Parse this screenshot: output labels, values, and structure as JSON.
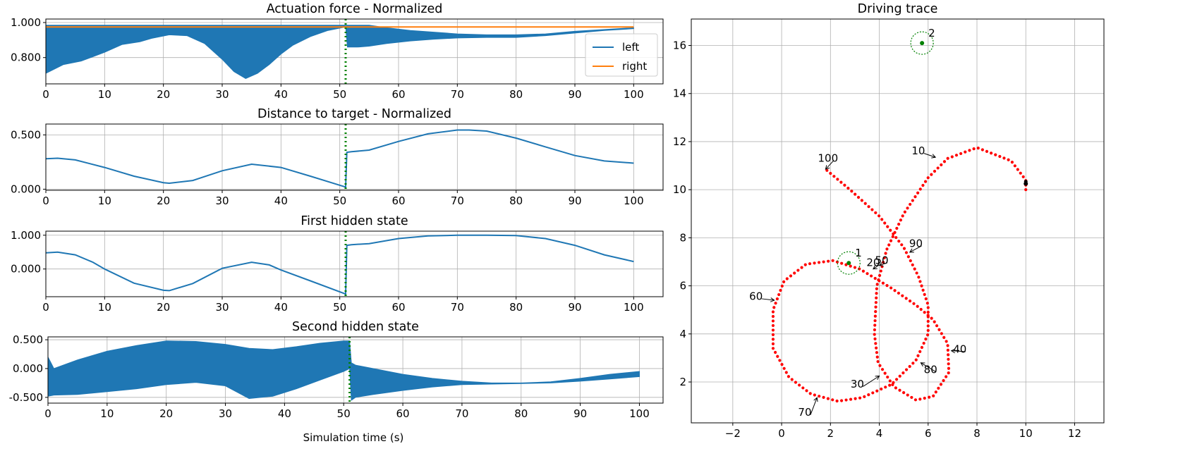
{
  "figure": {
    "xlabel": "Simulation time (s)"
  },
  "chart_data": [
    {
      "type": "line",
      "title": "Actuation force - Normalized",
      "xlim": [
        0,
        105
      ],
      "ylim": [
        0.65,
        1.02
      ],
      "xticks": [
        0,
        10,
        20,
        30,
        40,
        50,
        60,
        70,
        80,
        90,
        100
      ],
      "yticks": [
        0.8,
        1.0
      ],
      "ytick_labels": [
        "0.800",
        "1.000"
      ],
      "grid": true,
      "legend": "right",
      "event_time": 51,
      "colors": {
        "left": "#1f77b4",
        "right": "#ff7f0e",
        "event": "#008000"
      },
      "series": [
        {
          "name": "left",
          "style": "band",
          "x": [
            0,
            3,
            6,
            10,
            13,
            16,
            18,
            21,
            24,
            27,
            30,
            32,
            34,
            36,
            38,
            40,
            42,
            45,
            48,
            51,
            51.3,
            53,
            55,
            58,
            62,
            66,
            70,
            75,
            80,
            85,
            90,
            95,
            100
          ],
          "lower": [
            0.71,
            0.76,
            0.78,
            0.83,
            0.875,
            0.89,
            0.91,
            0.93,
            0.925,
            0.88,
            0.79,
            0.72,
            0.68,
            0.71,
            0.76,
            0.82,
            0.87,
            0.92,
            0.955,
            0.975,
            0.86,
            0.86,
            0.865,
            0.88,
            0.895,
            0.905,
            0.912,
            0.915,
            0.915,
            0.925,
            0.94,
            0.955,
            0.965
          ],
          "upper": [
            0.985,
            0.985,
            0.985,
            0.985,
            0.985,
            0.985,
            0.985,
            0.985,
            0.985,
            0.985,
            0.985,
            0.985,
            0.985,
            0.985,
            0.985,
            0.985,
            0.985,
            0.985,
            0.985,
            0.985,
            0.985,
            0.985,
            0.985,
            0.97,
            0.955,
            0.945,
            0.935,
            0.93,
            0.93,
            0.935,
            0.95,
            0.96,
            0.97
          ]
        },
        {
          "name": "right",
          "style": "line",
          "x": [
            0,
            100
          ],
          "y": [
            0.975,
            0.975
          ]
        }
      ]
    },
    {
      "type": "line",
      "title": "Distance to target - Normalized",
      "xlim": [
        0,
        105
      ],
      "ylim": [
        -0.01,
        0.6
      ],
      "xticks": [
        0,
        10,
        20,
        30,
        40,
        50,
        60,
        70,
        80,
        90,
        100
      ],
      "yticks": [
        0.0,
        0.5
      ],
      "ytick_labels": [
        "0.000",
        "0.500"
      ],
      "grid": true,
      "event_time": 51,
      "series": [
        {
          "style": "line",
          "x": [
            0,
            2,
            5,
            10,
            15,
            20,
            21,
            25,
            30,
            35,
            40,
            45,
            51,
            51.2,
            52,
            55,
            60,
            65,
            70,
            72,
            75,
            80,
            85,
            90,
            95,
            100
          ],
          "y": [
            0.28,
            0.285,
            0.27,
            0.2,
            0.12,
            0.06,
            0.055,
            0.08,
            0.17,
            0.23,
            0.2,
            0.12,
            0.02,
            0.34,
            0.345,
            0.36,
            0.44,
            0.51,
            0.545,
            0.545,
            0.535,
            0.47,
            0.39,
            0.31,
            0.26,
            0.24
          ]
        }
      ]
    },
    {
      "type": "line",
      "title": "First hidden state",
      "xlim": [
        0,
        105
      ],
      "ylim": [
        -0.82,
        1.12
      ],
      "xticks": [
        0,
        10,
        20,
        30,
        40,
        50,
        60,
        70,
        80,
        90,
        100
      ],
      "yticks": [
        0.0,
        1.0
      ],
      "ytick_labels": [
        "0.000",
        "1.000"
      ],
      "grid": true,
      "event_time": 51,
      "series": [
        {
          "style": "line",
          "x": [
            0,
            2,
            5,
            8,
            10,
            15,
            20,
            21,
            25,
            30,
            35,
            38,
            40,
            45,
            51,
            51.2,
            52,
            55,
            60,
            65,
            70,
            75,
            80,
            85,
            90,
            95,
            100
          ],
          "y": [
            0.48,
            0.5,
            0.42,
            0.2,
            0.0,
            -0.42,
            -0.63,
            -0.64,
            -0.43,
            0.02,
            0.2,
            0.12,
            -0.03,
            -0.35,
            -0.74,
            0.7,
            0.72,
            0.75,
            0.9,
            0.98,
            1.0,
            1.0,
            0.99,
            0.9,
            0.7,
            0.42,
            0.22
          ]
        }
      ]
    },
    {
      "type": "line",
      "title": "Second hidden state",
      "xlim": [
        0,
        104
      ],
      "ylim": [
        -0.6,
        0.55
      ],
      "xticks": [
        0,
        10,
        20,
        30,
        40,
        50,
        60,
        70,
        80,
        90,
        100
      ],
      "yticks": [
        -0.5,
        0.0,
        0.5
      ],
      "ytick_labels": [
        "-0.500",
        "0.000",
        "0.500"
      ],
      "grid": true,
      "event_time": 51,
      "series": [
        {
          "style": "band",
          "x": [
            0,
            1,
            5,
            10,
            15,
            20,
            25,
            30,
            34,
            38,
            42,
            46,
            50,
            51,
            51.3,
            52,
            55,
            60,
            65,
            70,
            75,
            80,
            85,
            90,
            95,
            100
          ],
          "upper": [
            0.2,
            0.0,
            0.15,
            0.3,
            0.4,
            0.48,
            0.47,
            0.42,
            0.35,
            0.33,
            0.38,
            0.44,
            0.48,
            0.48,
            0.1,
            0.06,
            0.0,
            -0.1,
            -0.17,
            -0.22,
            -0.25,
            -0.25,
            -0.23,
            -0.17,
            -0.1,
            -0.05
          ],
          "lower": [
            -0.48,
            -0.46,
            -0.45,
            -0.4,
            -0.35,
            -0.28,
            -0.24,
            -0.3,
            -0.52,
            -0.48,
            -0.35,
            -0.2,
            -0.05,
            0.0,
            -0.55,
            -0.5,
            -0.45,
            -0.38,
            -0.32,
            -0.28,
            -0.27,
            -0.26,
            -0.25,
            -0.22,
            -0.18,
            -0.14
          ]
        }
      ]
    },
    {
      "type": "scatter",
      "title": "Driving trace",
      "xlim": [
        -3.7,
        13.2
      ],
      "ylim": [
        0.3,
        17.1
      ],
      "xticks": [
        -2,
        0,
        2,
        4,
        6,
        8,
        10,
        12
      ],
      "yticks": [
        2,
        4,
        6,
        8,
        10,
        12,
        14,
        16
      ],
      "grid": true,
      "colors": {
        "trace": "#ff0000",
        "target": "#008000",
        "start": "#000000"
      },
      "path": [
        [
          10,
          10
        ],
        [
          10,
          10.4
        ],
        [
          9.4,
          11.2
        ],
        [
          8.0,
          11.75
        ],
        [
          6.8,
          11.3
        ],
        [
          6.0,
          10.5
        ],
        [
          5.0,
          9.0
        ],
        [
          4.3,
          7.5
        ],
        [
          3.9,
          6.0
        ],
        [
          3.8,
          4.0
        ],
        [
          3.95,
          2.8
        ],
        [
          4.6,
          1.8
        ],
        [
          5.5,
          1.25
        ],
        [
          6.2,
          1.4
        ],
        [
          6.85,
          2.4
        ],
        [
          6.8,
          3.6
        ],
        [
          6.2,
          4.6
        ],
        [
          5.5,
          5.2
        ],
        [
          4.5,
          5.9
        ],
        [
          3.2,
          6.7
        ],
        [
          2.1,
          7.05
        ],
        [
          1.0,
          6.9
        ],
        [
          0.1,
          6.2
        ],
        [
          -0.35,
          5.0
        ],
        [
          -0.35,
          3.4
        ],
        [
          0.3,
          2.2
        ],
        [
          1.2,
          1.5
        ],
        [
          2.3,
          1.2
        ],
        [
          3.3,
          1.35
        ],
        [
          4.5,
          1.9
        ],
        [
          5.5,
          2.9
        ],
        [
          6.0,
          4.0
        ],
        [
          6.0,
          5.2
        ],
        [
          5.6,
          6.4
        ],
        [
          5.0,
          7.6
        ],
        [
          4.0,
          8.9
        ],
        [
          2.8,
          10.0
        ],
        [
          1.8,
          10.85
        ]
      ],
      "targets": [
        {
          "label": "1",
          "x": 2.75,
          "y": 6.95
        },
        {
          "label": "2",
          "x": 5.75,
          "y": 16.1
        }
      ],
      "start": {
        "x": 10,
        "y": 10.25
      },
      "annotations": [
        {
          "label": "10",
          "x": 6.3,
          "y": 11.35,
          "tx": 5.6,
          "ty": 11.6
        },
        {
          "label": "20",
          "x": 3.75,
          "y": 6.7,
          "tx": 3.75,
          "ty": 6.95
        },
        {
          "label": "30",
          "x": 4.0,
          "y": 2.25,
          "tx": 3.1,
          "ty": 1.9
        },
        {
          "label": "40",
          "x": 6.95,
          "y": 3.3,
          "tx": 7.3,
          "ty": 3.35
        },
        {
          "label": "50",
          "x": 4.0,
          "y": 6.85,
          "tx": 4.1,
          "ty": 7.05
        },
        {
          "label": "60",
          "x": -0.3,
          "y": 5.4,
          "tx": -1.05,
          "ty": 5.55
        },
        {
          "label": "70",
          "x": 1.45,
          "y": 1.35,
          "tx": 0.95,
          "ty": 0.72
        },
        {
          "label": "80",
          "x": 5.7,
          "y": 2.8,
          "tx": 6.1,
          "ty": 2.5
        },
        {
          "label": "90",
          "x": 5.25,
          "y": 7.4,
          "tx": 5.5,
          "ty": 7.75
        },
        {
          "label": "100",
          "x": 1.8,
          "y": 10.85,
          "tx": 1.9,
          "ty": 11.3
        }
      ]
    }
  ]
}
